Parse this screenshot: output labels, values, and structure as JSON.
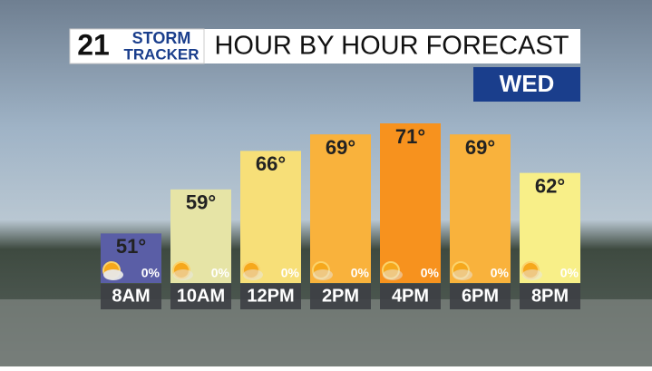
{
  "header": {
    "logo_number": "21",
    "logo_top": "STORM",
    "logo_bottom": "TRACKER",
    "title": "HOUR BY HOUR FORECAST",
    "day": "WED"
  },
  "chart_data": {
    "type": "bar",
    "categories": [
      "8AM",
      "10AM",
      "12PM",
      "2PM",
      "4PM",
      "6PM",
      "8PM"
    ],
    "values": [
      51,
      59,
      66,
      69,
      71,
      69,
      62
    ],
    "value_labels": [
      "51°",
      "59°",
      "66°",
      "69°",
      "71°",
      "69°",
      "62°"
    ],
    "colors": [
      "#5a5ea6",
      "#e6e4a6",
      "#f7df78",
      "#f9b23c",
      "#f7921e",
      "#f9b23c",
      "#f8ef88"
    ],
    "ylim": [
      42,
      71
    ],
    "precip": {
      "values": [
        0,
        0,
        0,
        0,
        0,
        0,
        0
      ],
      "value_labels": [
        "0%",
        "0%",
        "0%",
        "0%",
        "0%",
        "0%",
        "0%"
      ]
    }
  }
}
